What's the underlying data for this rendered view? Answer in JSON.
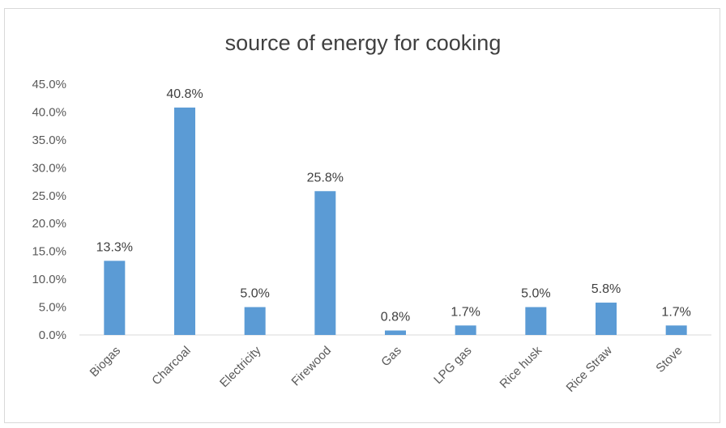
{
  "chart_data": {
    "type": "bar",
    "title": "source of energy for cooking",
    "categories": [
      "Biogas",
      "Charcoal",
      "Electricity",
      "Firewood",
      "Gas",
      "LPG gas",
      "Rice husk",
      "Rice Straw",
      "Stove"
    ],
    "values": [
      13.3,
      40.8,
      5.0,
      25.8,
      0.8,
      1.7,
      5.0,
      5.8,
      1.7
    ],
    "data_labels": [
      "13.3%",
      "40.8%",
      "5.0%",
      "25.8%",
      "0.8%",
      "1.7%",
      "5.0%",
      "5.8%",
      "1.7%"
    ],
    "y_ticks": [
      "0.0%",
      "5.0%",
      "10.0%",
      "15.0%",
      "20.0%",
      "25.0%",
      "30.0%",
      "35.0%",
      "40.0%",
      "45.0%"
    ],
    "ylim": [
      0,
      45
    ],
    "grid": false,
    "legend": "none",
    "bar_color": "#5b9bd5"
  }
}
